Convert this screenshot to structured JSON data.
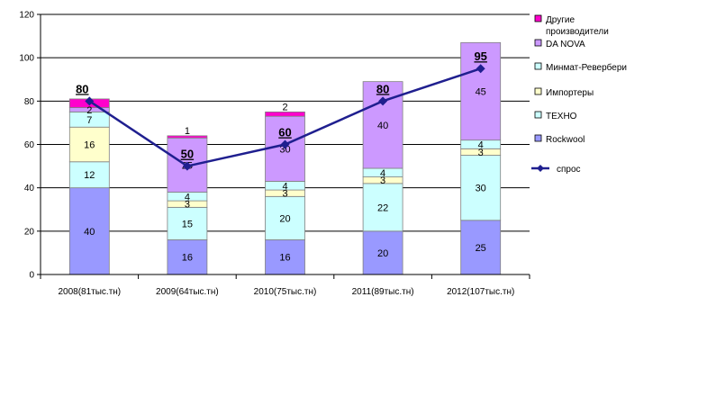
{
  "chart_data": {
    "type": "bar",
    "stacked": true,
    "categories": [
      "2008(81тыс.тн)",
      "2009(64тыс.тн)",
      "2010(75тыс.тн)",
      "2011(89тыс.тн)",
      "2012(107тыс.тн)"
    ],
    "ylim": [
      0,
      120
    ],
    "yticks": [
      0,
      20,
      40,
      60,
      80,
      100,
      120
    ],
    "grid": true,
    "legend_position": "right",
    "series": [
      {
        "name": "Rockwool",
        "color": "#9999ff",
        "values": [
          40,
          16,
          16,
          20,
          25
        ],
        "labels": [
          "40",
          "16",
          "16",
          "20",
          "25"
        ]
      },
      {
        "name": "ТЕХНО",
        "color": "#ccffff",
        "values": [
          12,
          15,
          20,
          22,
          30
        ],
        "labels": [
          "12",
          "15",
          "20",
          "22",
          "30"
        ]
      },
      {
        "name": "Импортеры",
        "color": "#ffffcc",
        "values": [
          16,
          3,
          3,
          3,
          3
        ],
        "labels": [
          "16",
          "3",
          "3",
          "3",
          "3"
        ]
      },
      {
        "name": "Минмат-Ревербери",
        "color": "#ccffff",
        "values": [
          7,
          4,
          4,
          4,
          4
        ],
        "labels": [
          "7",
          "4",
          "4",
          "4",
          "4"
        ]
      },
      {
        "name": "DA NOVA",
        "color": "#cc99ff",
        "values": [
          2,
          25,
          30,
          40,
          45
        ],
        "labels": [
          "2",
          "25",
          "30",
          "40",
          "45"
        ]
      },
      {
        "name": "Другие производители",
        "color": "#ff00cc",
        "values": [
          4,
          1,
          2,
          0,
          0
        ],
        "labels": [
          "",
          "1",
          "2",
          "",
          ""
        ]
      }
    ],
    "line": {
      "name": "спрос",
      "color": "#1f1f8f",
      "values": [
        80,
        50,
        60,
        80,
        95
      ],
      "labels": [
        "80",
        "50",
        "60",
        "80",
        "95"
      ]
    }
  }
}
